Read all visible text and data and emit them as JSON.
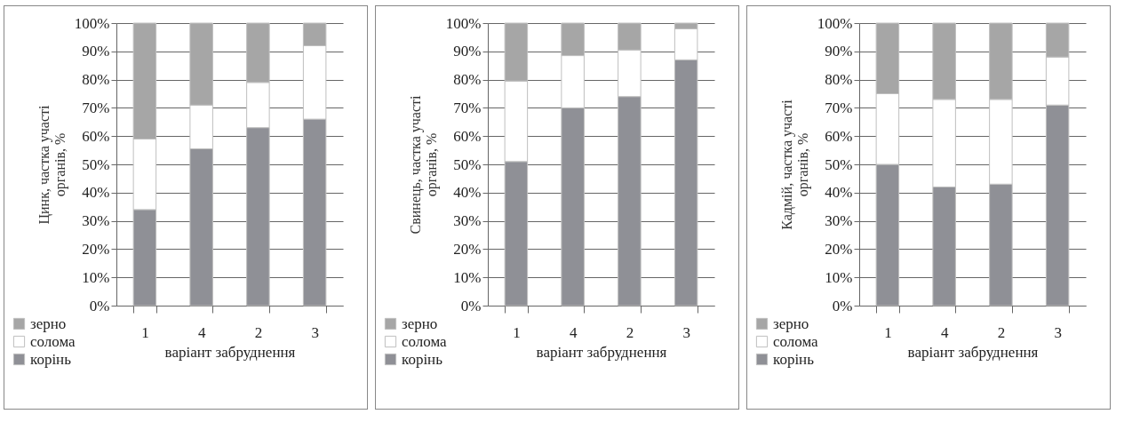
{
  "chart_data": [
    {
      "type": "bar",
      "stacked": true,
      "ylabel": "Цинк, частка участі органів, %",
      "xlabel": "варіант забруднення",
      "categories": [
        "1",
        "4",
        "2",
        "3"
      ],
      "series": [
        {
          "name": "корінь",
          "color": "#8f9096",
          "values": [
            34,
            55.5,
            63,
            66
          ]
        },
        {
          "name": "солома",
          "color": "#ffffff",
          "values": [
            25,
            15.5,
            16,
            26
          ]
        },
        {
          "name": "зерно",
          "color": "#a6a6a6",
          "values": [
            41,
            29,
            21,
            8
          ]
        }
      ],
      "ylim": [
        0,
        100
      ],
      "yticks": [
        {
          "value": 0,
          "label": "0%"
        },
        {
          "value": 10,
          "label": "10%"
        },
        {
          "value": 20,
          "label": "20%"
        },
        {
          "value": 30,
          "label": "30%"
        },
        {
          "value": 40,
          "label": "40%"
        },
        {
          "value": 50,
          "label": "50%"
        },
        {
          "value": 60,
          "label": "60%"
        },
        {
          "value": 70,
          "label": "70%"
        },
        {
          "value": 80,
          "label": "80%"
        },
        {
          "value": 90,
          "label": "90%"
        },
        {
          "value": 100,
          "label": "100%"
        }
      ],
      "grid": "y",
      "legend": "bottom left"
    },
    {
      "type": "bar",
      "stacked": true,
      "ylabel": "Свинець, частка участі органів, %",
      "xlabel": "варіант забруднення",
      "categories": [
        "1",
        "4",
        "2",
        "3"
      ],
      "series": [
        {
          "name": "корінь",
          "color": "#8f9096",
          "values": [
            51,
            70,
            74,
            87
          ]
        },
        {
          "name": "солома",
          "color": "#ffffff",
          "values": [
            28.5,
            18.5,
            16.5,
            11
          ]
        },
        {
          "name": "зерно",
          "color": "#a6a6a6",
          "values": [
            20.5,
            11.5,
            9.5,
            2
          ]
        }
      ],
      "ylim": [
        0,
        100
      ],
      "yticks": [
        {
          "value": 0,
          "label": "0%"
        },
        {
          "value": 10,
          "label": "10%"
        },
        {
          "value": 20,
          "label": "20%"
        },
        {
          "value": 30,
          "label": "30%"
        },
        {
          "value": 40,
          "label": "40%"
        },
        {
          "value": 50,
          "label": "50%"
        },
        {
          "value": 60,
          "label": "60%"
        },
        {
          "value": 70,
          "label": "70%"
        },
        {
          "value": 80,
          "label": "80%"
        },
        {
          "value": 90,
          "label": "90%"
        },
        {
          "value": 100,
          "label": "100%"
        }
      ],
      "grid": "y",
      "legend": "bottom left"
    },
    {
      "type": "bar",
      "stacked": true,
      "ylabel": "Кадмій, частка участі органів, %",
      "xlabel": "варіант забруднення",
      "categories": [
        "1",
        "4",
        "2",
        "3"
      ],
      "series": [
        {
          "name": "корінь",
          "color": "#8f9096",
          "values": [
            50,
            42,
            43,
            71
          ]
        },
        {
          "name": "солома",
          "color": "#ffffff",
          "values": [
            25,
            31,
            30,
            17
          ]
        },
        {
          "name": "зерно",
          "color": "#a6a6a6",
          "values": [
            25,
            27,
            27,
            12
          ]
        }
      ],
      "ylim": [
        0,
        100
      ],
      "yticks": [
        {
          "value": 0,
          "label": "0%"
        },
        {
          "value": 10,
          "label": "10%"
        },
        {
          "value": 20,
          "label": "20%"
        },
        {
          "value": 30,
          "label": "30%"
        },
        {
          "value": 40,
          "label": "40%"
        },
        {
          "value": 50,
          "label": "50%"
        },
        {
          "value": 60,
          "label": "60%"
        },
        {
          "value": 70,
          "label": "70%"
        },
        {
          "value": 80,
          "label": "80%"
        },
        {
          "value": 90,
          "label": "90%"
        },
        {
          "value": 100,
          "label": "100%"
        }
      ],
      "grid": "y",
      "legend": "bottom left"
    }
  ]
}
